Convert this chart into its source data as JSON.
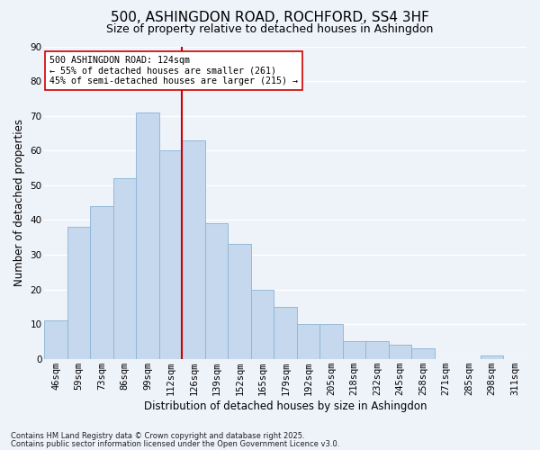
{
  "title": "500, ASHINGDON ROAD, ROCHFORD, SS4 3HF",
  "subtitle": "Size of property relative to detached houses in Ashingdon",
  "xlabel": "Distribution of detached houses by size in Ashingdon",
  "ylabel": "Number of detached properties",
  "categories": [
    "46sqm",
    "59sqm",
    "73sqm",
    "86sqm",
    "99sqm",
    "112sqm",
    "126sqm",
    "139sqm",
    "152sqm",
    "165sqm",
    "179sqm",
    "192sqm",
    "205sqm",
    "218sqm",
    "232sqm",
    "245sqm",
    "258sqm",
    "271sqm",
    "285sqm",
    "298sqm",
    "311sqm"
  ],
  "values": [
    11,
    38,
    44,
    52,
    71,
    60,
    63,
    39,
    33,
    20,
    15,
    10,
    10,
    5,
    5,
    4,
    3,
    0,
    0,
    1,
    0
  ],
  "bar_color": "#c5d8ed",
  "bar_edge_color": "#8ab4d4",
  "vline_x_index": 6,
  "vline_color": "#cc0000",
  "ylim": [
    0,
    90
  ],
  "yticks": [
    0,
    10,
    20,
    30,
    40,
    50,
    60,
    70,
    80,
    90
  ],
  "annotation_title": "500 ASHINGDON ROAD: 124sqm",
  "annotation_line1": "← 55% of detached houses are smaller (261)",
  "annotation_line2": "45% of semi-detached houses are larger (215) →",
  "annotation_box_color": "#ffffff",
  "annotation_box_edge": "#cc0000",
  "footnote1": "Contains HM Land Registry data © Crown copyright and database right 2025.",
  "footnote2": "Contains public sector information licensed under the Open Government Licence v3.0.",
  "background_color": "#eef2f9",
  "grid_color": "#ffffff",
  "title_fontsize": 11,
  "subtitle_fontsize": 9,
  "axis_label_fontsize": 8.5,
  "tick_fontsize": 7.5,
  "footnote_fontsize": 6.0
}
